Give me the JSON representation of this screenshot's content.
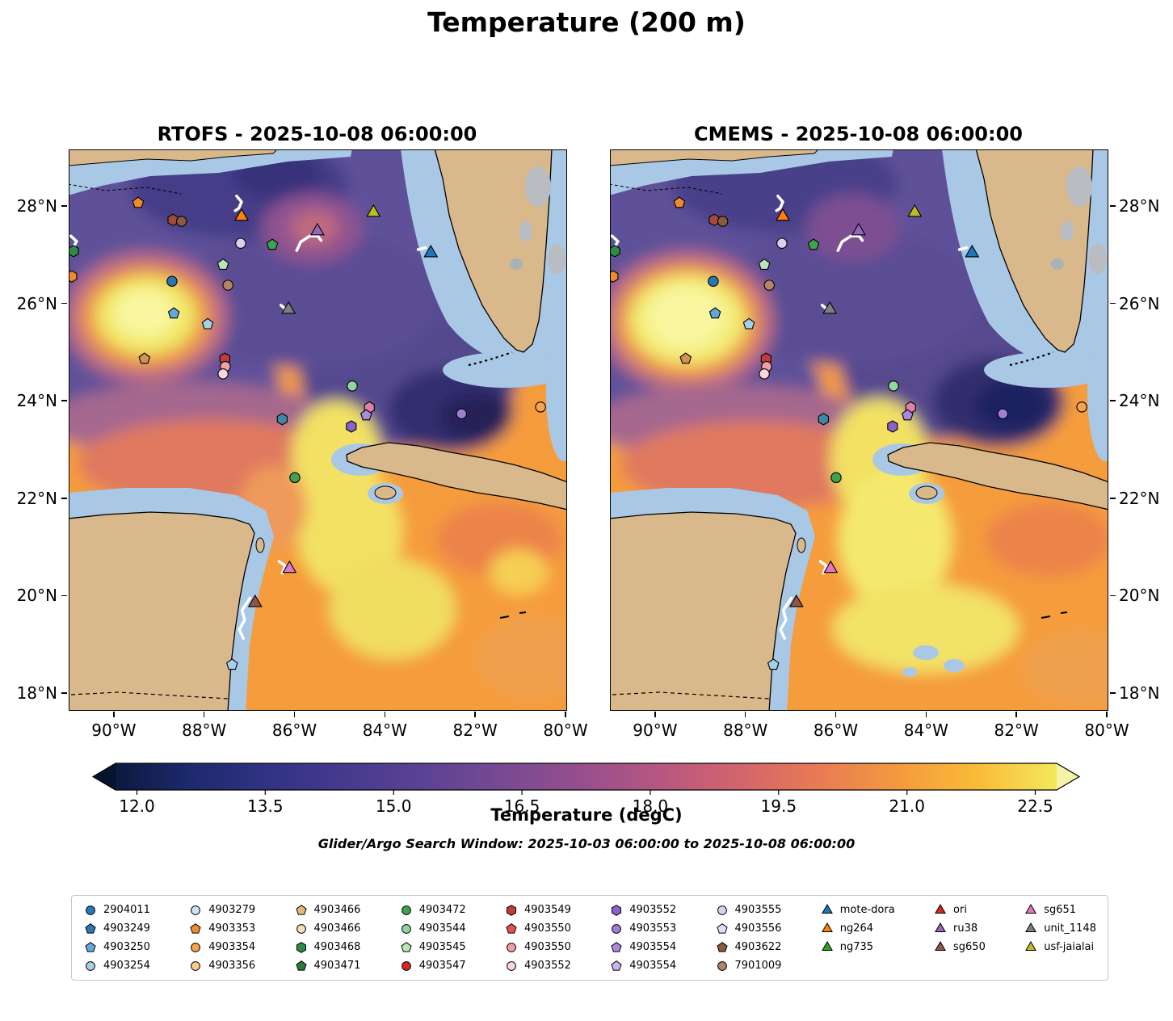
{
  "title": "Temperature (200 m)",
  "subplots": [
    {
      "id": "rtofs",
      "title": "RTOFS - 2025-10-08 06:00:00"
    },
    {
      "id": "cmems",
      "title": "CMEMS - 2025-10-08 06:00:00"
    }
  ],
  "search_window": "Glider/Argo Search Window: 2025-10-03 06:00:00 to 2025-10-08 06:00:00",
  "axes": {
    "lon_min": -91.0,
    "lon_max": -80.0,
    "lat_min": 17.67,
    "lat_max": 29.16,
    "xticks": [
      {
        "value": -90,
        "label": "90°W"
      },
      {
        "value": -88,
        "label": "88°W"
      },
      {
        "value": -86,
        "label": "86°W"
      },
      {
        "value": -84,
        "label": "84°W"
      },
      {
        "value": -82,
        "label": "82°W"
      },
      {
        "value": -80,
        "label": "80°W"
      }
    ],
    "yticks": [
      {
        "value": 28,
        "label": "28°N"
      },
      {
        "value": 26,
        "label": "26°N"
      },
      {
        "value": 24,
        "label": "24°N"
      },
      {
        "value": 22,
        "label": "22°N"
      },
      {
        "value": 20,
        "label": "20°N"
      },
      {
        "value": 18,
        "label": "18°N"
      }
    ]
  },
  "colorbar": {
    "label": "Temperature (degC)",
    "vmin": 11.75,
    "vmax": 22.75,
    "under": "#06132e",
    "over": "#f6f2a6",
    "colors": [
      "#0a1a3f",
      "#1e2a6e",
      "#333383",
      "#473b8e",
      "#5d4393",
      "#7a4a93",
      "#984f8c",
      "#b85880",
      "#d4656c",
      "#e87c54",
      "#f49a3e",
      "#f9bc38",
      "#f2e95c"
    ],
    "ticks": [
      {
        "value": 12.0,
        "label": "12.0"
      },
      {
        "value": 13.5,
        "label": "13.5"
      },
      {
        "value": 15.0,
        "label": "15.0"
      },
      {
        "value": 16.5,
        "label": "16.5"
      },
      {
        "value": 18.0,
        "label": "18.0"
      },
      {
        "value": 19.5,
        "label": "19.5"
      },
      {
        "value": 21.0,
        "label": "21.0"
      },
      {
        "value": 22.5,
        "label": "22.5"
      }
    ]
  },
  "chart_data": {
    "type": "map-contour",
    "variable": "Temperature (degC) at 200 m depth",
    "models": [
      "RTOFS",
      "CMEMS"
    ],
    "valid_time": "2025-10-08 06:00:00",
    "extent": {
      "lon": [
        -91.0,
        -80.0
      ],
      "lat": [
        17.67,
        29.16
      ]
    },
    "temperature_tick_range": [
      12.0,
      22.5
    ],
    "markers": [
      {
        "lon": -89.48,
        "lat": 28.08,
        "shape": "pentagon",
        "color": "#f08a2e"
      },
      {
        "lon": -88.71,
        "lat": 27.73,
        "shape": "hexagon",
        "color": "#a34a3a"
      },
      {
        "lon": -88.52,
        "lat": 27.7,
        "shape": "circle",
        "color": "#8a5a3c"
      },
      {
        "lon": -87.19,
        "lat": 27.8,
        "shape": "triangle",
        "color": "#ff7f0e",
        "name": "ng264"
      },
      {
        "lon": -85.51,
        "lat": 27.5,
        "shape": "triangle",
        "color": "#9467bd",
        "name": "ru38"
      },
      {
        "lon": -84.27,
        "lat": 27.88,
        "shape": "triangle",
        "color": "#bcbd22",
        "name": "usf-jaialai"
      },
      {
        "lon": -83.0,
        "lat": 27.05,
        "shape": "triangle",
        "color": "#1f77b4",
        "name": "mote-dora"
      },
      {
        "lon": -90.91,
        "lat": 27.09,
        "shape": "hexagon",
        "color": "#2e8b44"
      },
      {
        "lon": -90.95,
        "lat": 26.57,
        "shape": "hexagon",
        "color": "#f08a2e"
      },
      {
        "lon": -87.21,
        "lat": 27.25,
        "shape": "circle",
        "color": "#dccff0"
      },
      {
        "lon": -86.51,
        "lat": 27.22,
        "shape": "pentagon",
        "color": "#3fa34d"
      },
      {
        "lon": -87.6,
        "lat": 26.81,
        "shape": "pentagon",
        "color": "#b8e6b8"
      },
      {
        "lon": -88.73,
        "lat": 26.47,
        "shape": "circle",
        "color": "#2878b5"
      },
      {
        "lon": -87.49,
        "lat": 26.39,
        "shape": "circle",
        "color": "#b58468"
      },
      {
        "lon": -86.15,
        "lat": 25.89,
        "shape": "triangle",
        "color": "#7f7f7f",
        "name": "unit_1148"
      },
      {
        "lon": -88.69,
        "lat": 25.81,
        "shape": "pentagon",
        "color": "#64a8d8"
      },
      {
        "lon": -87.94,
        "lat": 25.59,
        "shape": "pentagon",
        "color": "#a8cfe8"
      },
      {
        "lon": -89.34,
        "lat": 24.88,
        "shape": "pentagon",
        "color": "#cf9456"
      },
      {
        "lon": -87.56,
        "lat": 24.88,
        "shape": "hexagon",
        "color": "#c23b3b"
      },
      {
        "lon": -87.55,
        "lat": 24.72,
        "shape": "circle",
        "color": "#f2a0a8"
      },
      {
        "lon": -87.6,
        "lat": 24.57,
        "shape": "circle",
        "color": "#f8d8dc"
      },
      {
        "lon": -84.74,
        "lat": 24.32,
        "shape": "circle",
        "color": "#90d6a0"
      },
      {
        "lon": -84.36,
        "lat": 23.88,
        "shape": "hexagon",
        "color": "#e07fa8"
      },
      {
        "lon": -84.43,
        "lat": 23.72,
        "shape": "pentagon",
        "color": "#a88add"
      },
      {
        "lon": -86.29,
        "lat": 23.64,
        "shape": "hexagon",
        "color": "#3f88a8"
      },
      {
        "lon": -84.76,
        "lat": 23.49,
        "shape": "hexagon",
        "color": "#8a63c9"
      },
      {
        "lon": -82.32,
        "lat": 23.75,
        "shape": "circle",
        "color": "#9e7fd4"
      },
      {
        "lon": -80.57,
        "lat": 23.89,
        "shape": "circle",
        "color": "#f5a54d"
      },
      {
        "lon": -86.01,
        "lat": 22.44,
        "shape": "circle",
        "color": "#3fa34d"
      },
      {
        "lon": -86.13,
        "lat": 20.57,
        "shape": "triangle",
        "color": "#e377c2",
        "name": "sg651"
      },
      {
        "lon": -86.89,
        "lat": 19.87,
        "shape": "triangle",
        "color": "#8c564b",
        "name": "sg650"
      },
      {
        "lon": -87.4,
        "lat": 18.6,
        "shape": "pentagon",
        "color": "#a8cfe8"
      }
    ],
    "tracks": [
      {
        "points": [
          [
            -87.3,
            28.22
          ],
          [
            -87.19,
            28.1
          ],
          [
            -87.25,
            27.97
          ],
          [
            -87.33,
            27.92
          ]
        ]
      },
      {
        "points": [
          [
            -90.97,
            27.4
          ],
          [
            -90.84,
            27.29
          ],
          [
            -90.96,
            27.1
          ]
        ]
      },
      {
        "points": [
          [
            -85.97,
            27.1
          ],
          [
            -85.88,
            27.28
          ],
          [
            -85.68,
            27.4
          ],
          [
            -85.5,
            27.4
          ],
          [
            -85.43,
            27.31
          ]
        ]
      },
      {
        "points": [
          [
            -83.28,
            27.12
          ],
          [
            -83.12,
            27.16
          ]
        ]
      },
      {
        "points": [
          [
            -86.32,
            25.98
          ],
          [
            -86.17,
            25.86
          ]
        ]
      },
      {
        "points": [
          [
            -86.36,
            20.72
          ],
          [
            -86.22,
            20.63
          ],
          [
            -86.29,
            20.48
          ]
        ]
      },
      {
        "points": [
          [
            -87.0,
            19.97
          ],
          [
            -87.18,
            19.72
          ],
          [
            -87.12,
            19.52
          ],
          [
            -87.24,
            19.32
          ],
          [
            -87.15,
            19.14
          ]
        ]
      }
    ]
  },
  "legend": {
    "columns": [
      [
        {
          "label": "2904011",
          "shape": "circle",
          "color": "#2878b5"
        },
        {
          "label": "4903249",
          "shape": "pentagon",
          "color": "#2878b5"
        },
        {
          "label": "4903250",
          "shape": "pentagon",
          "color": "#64a8d8"
        },
        {
          "label": "4903254",
          "shape": "circle",
          "color": "#a8cfe8"
        }
      ],
      [
        {
          "label": "4903279",
          "shape": "circle",
          "color": "#cfe2f2"
        },
        {
          "label": "4903353",
          "shape": "pentagon",
          "color": "#f08a2e"
        },
        {
          "label": "4903354",
          "shape": "circle",
          "color": "#f5a54d"
        },
        {
          "label": "4903356",
          "shape": "circle",
          "color": "#facd8e"
        }
      ],
      [
        {
          "label": "4903466",
          "shape": "pentagon",
          "color": "#e8b77d"
        },
        {
          "label": "4903466",
          "shape": "circle",
          "color": "#f7dcba"
        },
        {
          "label": "4903468",
          "shape": "hexagon",
          "color": "#2e8b44"
        },
        {
          "label": "4903471",
          "shape": "pentagon",
          "color": "#2b7a3c"
        }
      ],
      [
        {
          "label": "4903472",
          "shape": "circle",
          "color": "#3fa34d"
        },
        {
          "label": "4903544",
          "shape": "circle",
          "color": "#90d6a0"
        },
        {
          "label": "4903545",
          "shape": "pentagon",
          "color": "#b8e6b8"
        },
        {
          "label": "4903547",
          "shape": "circle",
          "color": "#d62728"
        }
      ],
      [
        {
          "label": "4903549",
          "shape": "hexagon",
          "color": "#c23b3b"
        },
        {
          "label": "4903550",
          "shape": "pentagon",
          "color": "#e05252"
        },
        {
          "label": "4903550",
          "shape": "circle",
          "color": "#f2a0a8"
        },
        {
          "label": "4903552",
          "shape": "circle",
          "color": "#f8d8dc"
        }
      ],
      [
        {
          "label": "4903552",
          "shape": "hexagon",
          "color": "#8a63c9"
        },
        {
          "label": "4903553",
          "shape": "circle",
          "color": "#9e7fd4"
        },
        {
          "label": "4903554",
          "shape": "pentagon",
          "color": "#a88add"
        },
        {
          "label": "4903554",
          "shape": "pentagon",
          "color": "#c9b6ea"
        }
      ],
      [
        {
          "label": "4903555",
          "shape": "circle",
          "color": "#dccff0"
        },
        {
          "label": "4903556",
          "shape": "pentagon",
          "color": "#e6dcf5"
        },
        {
          "label": "4903622",
          "shape": "pentagon",
          "color": "#8a5a3c"
        },
        {
          "label": "7901009",
          "shape": "circle",
          "color": "#b58468"
        }
      ],
      [
        {
          "label": "mote-dora",
          "shape": "triangle",
          "color": "#1f77b4"
        },
        {
          "label": "ng264",
          "shape": "triangle",
          "color": "#ff7f0e"
        },
        {
          "label": "ng735",
          "shape": "triangle",
          "color": "#2ca02c"
        }
      ],
      [
        {
          "label": "ori",
          "shape": "triangle",
          "color": "#d62728"
        },
        {
          "label": "ru38",
          "shape": "triangle",
          "color": "#9467bd"
        },
        {
          "label": "sg650",
          "shape": "triangle",
          "color": "#8c564b"
        }
      ],
      [
        {
          "label": "sg651",
          "shape": "triangle",
          "color": "#e377c2"
        },
        {
          "label": "unit_1148",
          "shape": "triangle",
          "color": "#7f7f7f"
        },
        {
          "label": "usf-jaialai",
          "shape": "triangle",
          "color": "#bcbd22"
        }
      ]
    ]
  }
}
